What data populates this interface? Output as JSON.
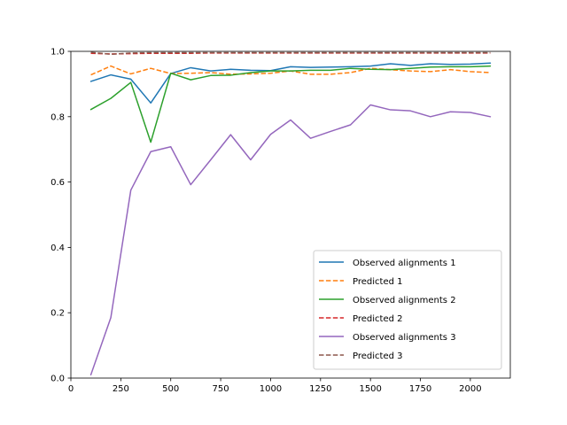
{
  "chart_data": {
    "type": "line",
    "title": "",
    "xlabel": "",
    "ylabel": "",
    "xlim": [
      0,
      2200
    ],
    "ylim": [
      0.0,
      1.0
    ],
    "xticks": [
      0,
      250,
      500,
      750,
      1000,
      1250,
      1500,
      1750,
      2000
    ],
    "yticks": [
      0.0,
      0.2,
      0.4,
      0.6,
      0.8,
      1.0
    ],
    "xtick_labels": [
      "0",
      "250",
      "500",
      "750",
      "1000",
      "1250",
      "1500",
      "1750",
      "2000"
    ],
    "ytick_labels": [
      "0.0",
      "0.2",
      "0.4",
      "0.6",
      "0.8",
      "1.0"
    ],
    "grid": false,
    "legend_position": "lower-right",
    "x": [
      100,
      200,
      300,
      400,
      500,
      600,
      700,
      800,
      900,
      1000,
      1100,
      1200,
      1300,
      1400,
      1500,
      1600,
      1700,
      1800,
      1900,
      2000,
      2100
    ],
    "series": [
      {
        "name": "Observed alignments 1",
        "color": "#1f77b4",
        "dash": "solid",
        "values": [
          0.908,
          0.928,
          0.915,
          0.842,
          0.932,
          0.95,
          0.94,
          0.945,
          0.942,
          0.941,
          0.953,
          0.951,
          0.952,
          0.953,
          0.955,
          0.962,
          0.957,
          0.962,
          0.96,
          0.961,
          0.964
        ]
      },
      {
        "name": "Predicted 1",
        "color": "#ff7f0e",
        "dash": "dashed",
        "values": [
          0.928,
          0.955,
          0.931,
          0.948,
          0.932,
          0.933,
          0.935,
          0.93,
          0.931,
          0.933,
          0.94,
          0.93,
          0.93,
          0.935,
          0.948,
          0.944,
          0.94,
          0.938,
          0.944,
          0.938,
          0.935
        ]
      },
      {
        "name": "Observed alignments 2",
        "color": "#2ca02c",
        "dash": "solid",
        "values": [
          0.822,
          0.856,
          0.905,
          0.722,
          0.933,
          0.913,
          0.926,
          0.927,
          0.935,
          0.94,
          0.94,
          0.942,
          0.942,
          0.948,
          0.945,
          0.944,
          0.948,
          0.952,
          0.953,
          0.953,
          0.955
        ]
      },
      {
        "name": "Predicted 2",
        "color": "#d62728",
        "dash": "dashed",
        "values": [
          0.994,
          0.992,
          0.993,
          0.994,
          0.994,
          0.994,
          0.995,
          0.995,
          0.995,
          0.995,
          0.995,
          0.995,
          0.995,
          0.995,
          0.995,
          0.995,
          0.995,
          0.995,
          0.995,
          0.995,
          0.995
        ]
      },
      {
        "name": "Observed alignments 3",
        "color": "#9467bd",
        "dash": "solid",
        "values": [
          0.01,
          0.185,
          0.575,
          0.693,
          0.708,
          0.592,
          0.668,
          0.745,
          0.668,
          0.746,
          0.79,
          0.734,
          0.755,
          0.775,
          0.836,
          0.821,
          0.818,
          0.8,
          0.815,
          0.813,
          0.8
        ]
      },
      {
        "name": "Predicted 3",
        "color": "#8c564b",
        "dash": "dashed",
        "values": [
          0.997,
          0.991,
          0.995,
          0.996,
          0.996,
          0.996,
          0.996,
          0.996,
          0.996,
          0.996,
          0.996,
          0.996,
          0.996,
          0.996,
          0.996,
          0.996,
          0.996,
          0.996,
          0.996,
          0.996,
          0.996
        ]
      }
    ]
  }
}
